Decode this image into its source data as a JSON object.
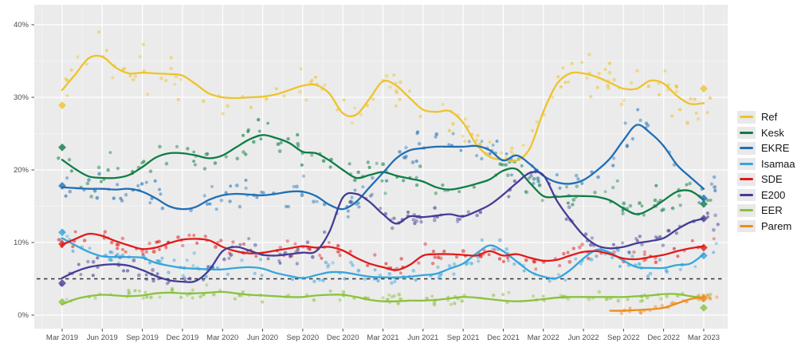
{
  "chart_data": {
    "type": "scatter",
    "title": "",
    "description": "Estonian party support poll tracker: poll scatter points with smoothed trend lines, election results as diamonds, 5% threshold dashed line",
    "x_tick_labels": [
      "Mar 2019",
      "Jun 2019",
      "Sep 2019",
      "Dec 2019",
      "Mar 2020",
      "Jun 2020",
      "Sep 2020",
      "Dec 2020",
      "Mar 2021",
      "Jun 2021",
      "Sep 2021",
      "Dec 2021",
      "Mar 2022",
      "Jun 2022",
      "Sep 2022",
      "Dec 2022",
      "Mar 2023"
    ],
    "y_tick_labels": [
      "0%",
      "10%",
      "20%",
      "30%",
      "40%"
    ],
    "y_tick_values": [
      0,
      10,
      20,
      30,
      40
    ],
    "months_total": 48,
    "months_per_tick": 3,
    "ylim": [
      0,
      42
    ],
    "grid": "white-on-gray",
    "panel_bg": "#ebebeb",
    "grid_major_color": "#ffffff",
    "axis_text_color": "#4d4d4d",
    "threshold": {
      "value": 5,
      "style": "dashed",
      "color": "#333333"
    },
    "legend_position": "right",
    "series": [
      {
        "name": "Ref",
        "color": "#eec32b",
        "start_month": 0,
        "scatter_sigma": 2.2,
        "scatter_count": 135,
        "values": [
          31.0,
          33.2,
          35.4,
          35.6,
          34.1,
          33.3,
          33.4,
          33.3,
          33.2,
          33.0,
          31.8,
          30.5,
          30.0,
          29.9,
          30.0,
          30.1,
          30.4,
          31.0,
          31.6,
          31.7,
          30.5,
          27.8,
          27.6,
          29.8,
          32.2,
          31.6,
          29.9,
          28.3,
          28.0,
          28.1,
          26.5,
          23.5,
          21.8,
          21.4,
          21.3,
          23.0,
          28.0,
          31.8,
          33.3,
          33.3,
          32.8,
          32.0,
          31.2,
          31.2,
          32.3,
          31.9,
          30.2,
          29.1,
          29.2
        ],
        "elections": [
          {
            "month": 0,
            "value": 28.9
          },
          {
            "month": 48,
            "value": 31.2
          }
        ]
      },
      {
        "name": "Kesk",
        "color": "#0e7d45",
        "start_month": 0,
        "scatter_sigma": 2.0,
        "scatter_count": 135,
        "values": [
          21.4,
          20.1,
          19.1,
          18.9,
          18.9,
          19.3,
          20.4,
          21.7,
          22.3,
          22.3,
          22.0,
          21.6,
          22.0,
          23.1,
          24.2,
          24.8,
          24.4,
          23.7,
          22.5,
          22.3,
          21.3,
          20.0,
          18.9,
          19.3,
          19.7,
          19.2,
          18.8,
          18.4,
          17.6,
          17.3,
          17.6,
          18.1,
          18.7,
          19.9,
          20.1,
          18.2,
          16.4,
          16.3,
          16.4,
          16.4,
          16.3,
          15.8,
          14.7,
          13.9,
          14.6,
          15.8,
          17.0,
          17.1,
          15.9
        ],
        "elections": [
          {
            "month": 0,
            "value": 23.1
          },
          {
            "month": 48,
            "value": 15.3
          }
        ]
      },
      {
        "name": "EKRE",
        "color": "#1f6fb5",
        "start_month": 0,
        "scatter_sigma": 1.9,
        "scatter_count": 135,
        "values": [
          17.6,
          17.5,
          17.4,
          17.4,
          17.3,
          17.4,
          17.0,
          16.1,
          15.0,
          14.6,
          14.9,
          15.9,
          16.5,
          16.7,
          16.6,
          16.5,
          16.7,
          17.0,
          17.0,
          16.4,
          15.2,
          14.6,
          15.6,
          17.6,
          19.6,
          21.6,
          22.7,
          23.0,
          23.2,
          23.2,
          23.2,
          23.3,
          22.7,
          21.3,
          22.0,
          20.8,
          19.2,
          18.3,
          18.1,
          18.6,
          19.9,
          21.6,
          24.1,
          26.2,
          25.1,
          23.3,
          20.7,
          19.0,
          17.4
        ],
        "elections": [
          {
            "month": 0,
            "value": 17.8
          },
          {
            "month": 48,
            "value": 16.1
          }
        ]
      },
      {
        "name": "Isamaa",
        "color": "#36a5dc",
        "start_month": 0,
        "scatter_sigma": 1.1,
        "scatter_count": 130,
        "values": [
          10.6,
          9.6,
          8.7,
          8.1,
          8.0,
          8.0,
          7.9,
          7.2,
          6.8,
          6.5,
          6.4,
          6.3,
          6.3,
          6.5,
          6.6,
          6.4,
          5.8,
          5.4,
          5.1,
          5.5,
          5.9,
          5.9,
          5.6,
          5.3,
          5.2,
          5.2,
          5.3,
          5.5,
          5.7,
          6.4,
          7.1,
          8.5,
          9.6,
          8.8,
          7.4,
          6.0,
          5.3,
          5.1,
          6.2,
          7.8,
          9.0,
          8.6,
          7.5,
          6.6,
          6.5,
          6.5,
          6.9,
          7.1,
          8.4
        ],
        "elections": [
          {
            "month": 0,
            "value": 11.4
          },
          {
            "month": 48,
            "value": 8.2
          }
        ]
      },
      {
        "name": "SDE",
        "color": "#e01a1a",
        "start_month": 0,
        "scatter_sigma": 1.1,
        "scatter_count": 130,
        "values": [
          9.7,
          10.5,
          11.2,
          10.9,
          10.2,
          9.6,
          9.1,
          9.3,
          9.9,
          10.4,
          10.5,
          10.3,
          9.4,
          8.8,
          8.5,
          8.6,
          8.9,
          9.2,
          9.5,
          9.3,
          9.4,
          8.9,
          7.9,
          7.1,
          6.6,
          6.2,
          6.9,
          8.2,
          8.4,
          8.4,
          8.3,
          8.2,
          8.8,
          8.2,
          8.4,
          7.9,
          7.5,
          7.6,
          8.2,
          8.7,
          8.8,
          8.4,
          7.8,
          7.7,
          8.0,
          8.3,
          8.8,
          9.2,
          9.5
        ],
        "elections": [
          {
            "month": 0,
            "value": 9.8
          },
          {
            "month": 48,
            "value": 9.3
          }
        ]
      },
      {
        "name": "E200",
        "color": "#433d95",
        "start_month": 0,
        "scatter_sigma": 1.2,
        "scatter_count": 130,
        "values": [
          5.1,
          6.0,
          6.6,
          6.9,
          7.0,
          6.8,
          6.2,
          5.4,
          4.8,
          4.6,
          4.7,
          6.2,
          8.8,
          9.4,
          8.9,
          8.3,
          8.2,
          8.4,
          8.6,
          8.8,
          11.5,
          16.2,
          16.7,
          15.6,
          13.9,
          12.6,
          13.6,
          13.5,
          13.7,
          13.9,
          13.6,
          14.3,
          15.2,
          16.6,
          18.2,
          19.6,
          19.3,
          15.8,
          13.2,
          11.0,
          9.6,
          9.2,
          9.4,
          9.9,
          10.2,
          10.6,
          11.8,
          12.8,
          13.3
        ],
        "elections": [
          {
            "month": 0,
            "value": 4.4
          },
          {
            "month": 48,
            "value": 13.3
          }
        ]
      },
      {
        "name": "EER",
        "color": "#8ac23d",
        "start_month": 0,
        "scatter_sigma": 0.7,
        "scatter_count": 110,
        "values": [
          1.5,
          2.2,
          2.6,
          2.8,
          2.7,
          2.6,
          2.7,
          3.0,
          3.1,
          3.0,
          3.0,
          3.1,
          3.2,
          3.0,
          2.8,
          2.7,
          2.6,
          2.5,
          2.5,
          2.7,
          2.8,
          2.8,
          2.5,
          2.1,
          1.9,
          1.9,
          2.0,
          2.0,
          2.1,
          2.3,
          2.5,
          2.4,
          2.2,
          2.0,
          1.9,
          2.0,
          2.2,
          2.4,
          2.5,
          2.5,
          2.5,
          2.5,
          2.5,
          2.6,
          2.7,
          2.9,
          2.9,
          2.6,
          2.4
        ],
        "elections": [
          {
            "month": 0,
            "value": 1.8
          },
          {
            "month": 48,
            "value": 1.0
          }
        ]
      },
      {
        "name": "Parem",
        "color": "#ee8c1e",
        "start_month": 41,
        "scatter_sigma": 0.4,
        "scatter_count": 26,
        "values": [
          0.6,
          0.6,
          0.7,
          0.8,
          1.0,
          1.6,
          2.2,
          2.5
        ],
        "elections": [
          {
            "month": 48,
            "value": 2.3
          }
        ]
      }
    ]
  }
}
